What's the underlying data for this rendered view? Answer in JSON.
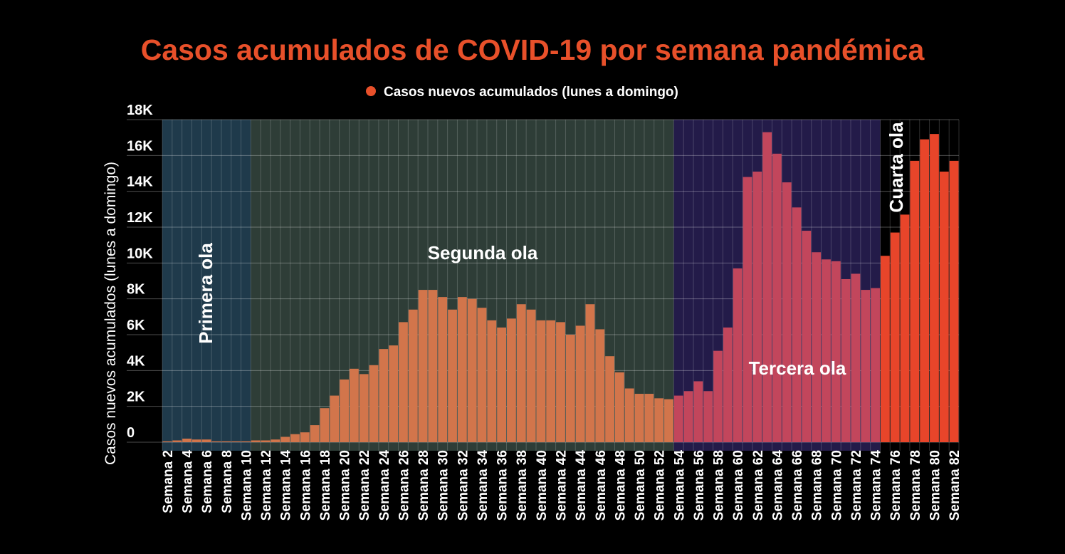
{
  "chart_data": {
    "type": "bar",
    "title": "Casos acumulados de COVID-19 por semana pandémica",
    "y_label": "Casos nuevos acumulados (lunes a domingo)",
    "legend": "top",
    "grid": true,
    "categories": [
      "Semana 2",
      null,
      "Semana 4",
      null,
      "Semana 6",
      null,
      "Semana 8",
      null,
      "Semana 10",
      null,
      "Semana 12",
      null,
      "Semana 14",
      null,
      "Semana 16",
      null,
      "Semana 18",
      null,
      "Semana 20",
      null,
      "Semana 22",
      null,
      "Semana 24",
      null,
      "Semana 26",
      null,
      "Semana 28",
      null,
      "Semana 30",
      null,
      "Semana 32",
      null,
      "Semana 34",
      null,
      "Semana 36",
      null,
      "Semana 38",
      null,
      "Semana 40",
      null,
      "Semana 42",
      null,
      "Semana 44",
      null,
      "Semana 46",
      null,
      "Semana 48",
      null,
      "Semana 50",
      null,
      "Semana 52",
      null,
      "Semana 54",
      null,
      "Semana 56",
      null,
      "Semana 58",
      null,
      "Semana 60",
      null,
      "Semana 62",
      null,
      "Semana 64",
      null,
      "Semana 66",
      null,
      "Semana 68",
      null,
      "Semana 70",
      null,
      "Semana 72",
      null,
      "Semana 74",
      null,
      "Semana 76",
      null,
      "Semana 78",
      null,
      "Semana 80",
      null,
      "Semana 82"
    ],
    "series": [
      {
        "name": "Casos nuevos acumulados (lunes a domingo)",
        "color": "#e8502a",
        "values": [
          50,
          100,
          200,
          150,
          150,
          50,
          50,
          50,
          50,
          100,
          100,
          150,
          300,
          450,
          550,
          950,
          1900,
          2600,
          3500,
          4100,
          3800,
          4300,
          5200,
          5400,
          6700,
          7400,
          8500,
          8500,
          8100,
          7400,
          8100,
          8000,
          7500,
          6800,
          6400,
          6900,
          7700,
          7400,
          6800,
          6800,
          6700,
          6000,
          6500,
          7700,
          6300,
          4800,
          3900,
          3000,
          2700,
          2700,
          2450,
          2400,
          2600,
          2850,
          3400,
          2850,
          5100,
          6400,
          9700,
          14800,
          15100,
          17300,
          16100,
          14500,
          13100,
          11800,
          10600,
          10200,
          10100,
          9100,
          9400,
          8500,
          8600,
          10400,
          11700,
          12700,
          15700,
          16900,
          17200,
          15100,
          15700
        ]
      }
    ],
    "waves": [
      {
        "label": "Primera ola",
        "bars": 9,
        "color": "#d2754b",
        "band_color": "#1f3a4b"
      },
      {
        "label": "Segunda ola",
        "bars": 43,
        "color": "#d2754b",
        "band_color": "#2e3d37"
      },
      {
        "label": "Tercera ola",
        "bars": 21,
        "color": "#c2465c",
        "band_color": "#231b49"
      },
      {
        "label": "Cuarta ola",
        "bars": 8,
        "color": "#e8452a",
        "band_color": null
      }
    ],
    "ylim": [
      0,
      18000
    ],
    "yticks": [
      0,
      {
        "value": 2000,
        "label": "2K"
      },
      {
        "value": 4000,
        "label": "4K"
      },
      {
        "value": 6000,
        "label": "6K"
      },
      {
        "value": 8000,
        "label": "8K"
      },
      {
        "value": 10000,
        "label": "10K"
      },
      {
        "value": 12000,
        "label": "12K"
      },
      {
        "value": 14000,
        "label": "14K"
      },
      {
        "value": 16000,
        "label": "16K"
      },
      {
        "value": 18000,
        "label": "18K"
      }
    ]
  }
}
